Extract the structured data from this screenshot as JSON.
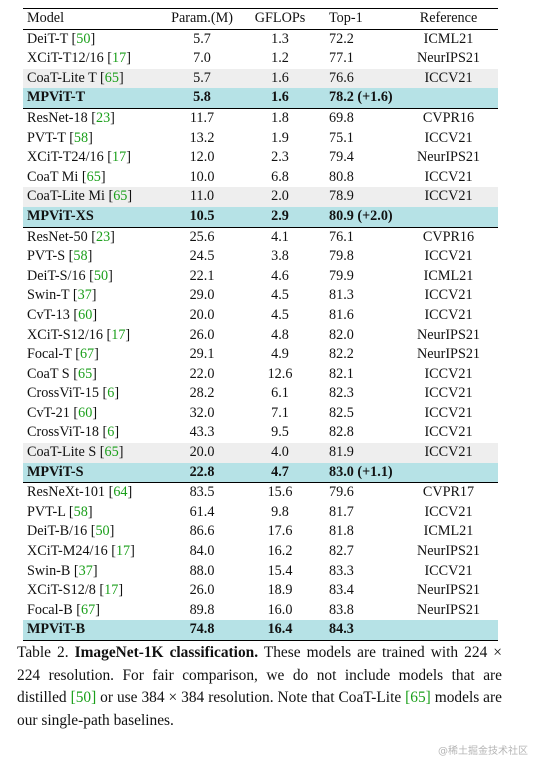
{
  "headers": {
    "model": "Model",
    "params": "Param.(M)",
    "gflops": "GFLOPs",
    "top1": "Top-1",
    "reference": "Reference"
  },
  "rows": [
    {
      "name": "DeiT-T",
      "cite": "50",
      "params": "5.7",
      "gflops": "1.3",
      "top1": "72.2",
      "ref": "ICML21",
      "kind": "normal",
      "group_start": false
    },
    {
      "name": "XCiT-T12/16",
      "cite": "17",
      "params": "7.0",
      "gflops": "1.2",
      "top1": "77.1",
      "ref": "NeurIPS21",
      "kind": "normal",
      "group_start": false
    },
    {
      "name": "CoaT-Lite T",
      "cite": "65",
      "params": "5.7",
      "gflops": "1.6",
      "top1": "76.6",
      "ref": "ICCV21",
      "kind": "coat",
      "group_start": false
    },
    {
      "name": "MPViT-T",
      "cite": "",
      "params": "5.8",
      "gflops": "1.6",
      "top1": "78.2 (+1.6)",
      "ref": "",
      "kind": "mpvit",
      "group_start": false
    },
    {
      "name": "ResNet-18",
      "cite": "23",
      "params": "11.7",
      "gflops": "1.8",
      "top1": "69.8",
      "ref": "CVPR16",
      "kind": "normal",
      "group_start": true
    },
    {
      "name": "PVT-T",
      "cite": "58",
      "params": "13.2",
      "gflops": "1.9",
      "top1": "75.1",
      "ref": "ICCV21",
      "kind": "normal",
      "group_start": false
    },
    {
      "name": "XCiT-T24/16",
      "cite": "17",
      "params": "12.0",
      "gflops": "2.3",
      "top1": "79.4",
      "ref": "NeurIPS21",
      "kind": "normal",
      "group_start": false
    },
    {
      "name": "CoaT Mi",
      "cite": "65",
      "params": "10.0",
      "gflops": "6.8",
      "top1": "80.8",
      "ref": "ICCV21",
      "kind": "normal",
      "group_start": false
    },
    {
      "name": "CoaT-Lite Mi",
      "cite": "65",
      "params": "11.0",
      "gflops": "2.0",
      "top1": "78.9",
      "ref": "ICCV21",
      "kind": "coat",
      "group_start": false
    },
    {
      "name": "MPViT-XS",
      "cite": "",
      "params": "10.5",
      "gflops": "2.9",
      "top1": "80.9 (+2.0)",
      "ref": "",
      "kind": "mpvit",
      "group_start": false
    },
    {
      "name": "ResNet-50",
      "cite": "23",
      "params": "25.6",
      "gflops": "4.1",
      "top1": "76.1",
      "ref": "CVPR16",
      "kind": "normal",
      "group_start": true
    },
    {
      "name": "PVT-S",
      "cite": "58",
      "params": "24.5",
      "gflops": "3.8",
      "top1": "79.8",
      "ref": "ICCV21",
      "kind": "normal",
      "group_start": false
    },
    {
      "name": "DeiT-S/16",
      "cite": "50",
      "params": "22.1",
      "gflops": "4.6",
      "top1": "79.9",
      "ref": "ICML21",
      "kind": "normal",
      "group_start": false
    },
    {
      "name": "Swin-T",
      "cite": "37",
      "params": "29.0",
      "gflops": "4.5",
      "top1": "81.3",
      "ref": "ICCV21",
      "kind": "normal",
      "group_start": false
    },
    {
      "name": "CvT-13",
      "cite": "60",
      "params": "20.0",
      "gflops": "4.5",
      "top1": "81.6",
      "ref": "ICCV21",
      "kind": "normal",
      "group_start": false
    },
    {
      "name": "XCiT-S12/16",
      "cite": "17",
      "params": "26.0",
      "gflops": "4.8",
      "top1": "82.0",
      "ref": "NeurIPS21",
      "kind": "normal",
      "group_start": false
    },
    {
      "name": "Focal-T",
      "cite": "67",
      "params": "29.1",
      "gflops": "4.9",
      "top1": "82.2",
      "ref": "NeurIPS21",
      "kind": "normal",
      "group_start": false
    },
    {
      "name": "CoaT S",
      "cite": "65",
      "params": "22.0",
      "gflops": "12.6",
      "top1": "82.1",
      "ref": "ICCV21",
      "kind": "normal",
      "group_start": false
    },
    {
      "name": "CrossViT-15",
      "cite": "6",
      "params": "28.2",
      "gflops": "6.1",
      "top1": "82.3",
      "ref": "ICCV21",
      "kind": "normal",
      "group_start": false
    },
    {
      "name": "CvT-21",
      "cite": "60",
      "params": "32.0",
      "gflops": "7.1",
      "top1": "82.5",
      "ref": "ICCV21",
      "kind": "normal",
      "group_start": false
    },
    {
      "name": "CrossViT-18",
      "cite": "6",
      "params": "43.3",
      "gflops": "9.5",
      "top1": "82.8",
      "ref": "ICCV21",
      "kind": "normal",
      "group_start": false
    },
    {
      "name": "CoaT-Lite S",
      "cite": "65",
      "params": "20.0",
      "gflops": "4.0",
      "top1": "81.9",
      "ref": "ICCV21",
      "kind": "coat",
      "group_start": false
    },
    {
      "name": "MPViT-S",
      "cite": "",
      "params": "22.8",
      "gflops": "4.7",
      "top1": "83.0 (+1.1)",
      "ref": "",
      "kind": "mpvit",
      "group_start": false
    },
    {
      "name": "ResNeXt-101",
      "cite": "64",
      "params": "83.5",
      "gflops": "15.6",
      "top1": "79.6",
      "ref": "CVPR17",
      "kind": "normal",
      "group_start": true
    },
    {
      "name": "PVT-L",
      "cite": "58",
      "params": "61.4",
      "gflops": "9.8",
      "top1": "81.7",
      "ref": "ICCV21",
      "kind": "normal",
      "group_start": false
    },
    {
      "name": "DeiT-B/16",
      "cite": "50",
      "params": "86.6",
      "gflops": "17.6",
      "top1": "81.8",
      "ref": "ICML21",
      "kind": "normal",
      "group_start": false
    },
    {
      "name": "XCiT-M24/16",
      "cite": "17",
      "params": "84.0",
      "gflops": "16.2",
      "top1": "82.7",
      "ref": "NeurIPS21",
      "kind": "normal",
      "group_start": false
    },
    {
      "name": "Swin-B",
      "cite": "37",
      "params": "88.0",
      "gflops": "15.4",
      "top1": "83.3",
      "ref": "ICCV21",
      "kind": "normal",
      "group_start": false
    },
    {
      "name": "XCiT-S12/8",
      "cite": "17",
      "params": "26.0",
      "gflops": "18.9",
      "top1": "83.4",
      "ref": "NeurIPS21",
      "kind": "normal",
      "group_start": false
    },
    {
      "name": "Focal-B",
      "cite": "67",
      "params": "89.8",
      "gflops": "16.0",
      "top1": "83.8",
      "ref": "NeurIPS21",
      "kind": "normal",
      "group_start": false
    },
    {
      "name": "MPViT-B",
      "cite": "",
      "params": "74.8",
      "gflops": "16.4",
      "top1": "84.3",
      "ref": "",
      "kind": "mpvit",
      "group_start": false
    }
  ],
  "caption": {
    "label": "Table 2.",
    "title": "ImageNet-1K classification.",
    "seg1": " These models are trained with 224 × 224 resolution. For fair comparison, we do not include models that are distilled ",
    "cite1": "[50]",
    "seg2": " or use 384 × 384 resolution. Note that CoaT-Lite ",
    "cite2": "[65]",
    "seg3": " models are our single-path baselines."
  },
  "watermark": "@稀土掘金技术社区",
  "colors": {
    "mpvit_row_bg": "#b6e2e6",
    "coat_row_bg": "#eeeeee",
    "citation": "#1a9f1a"
  }
}
